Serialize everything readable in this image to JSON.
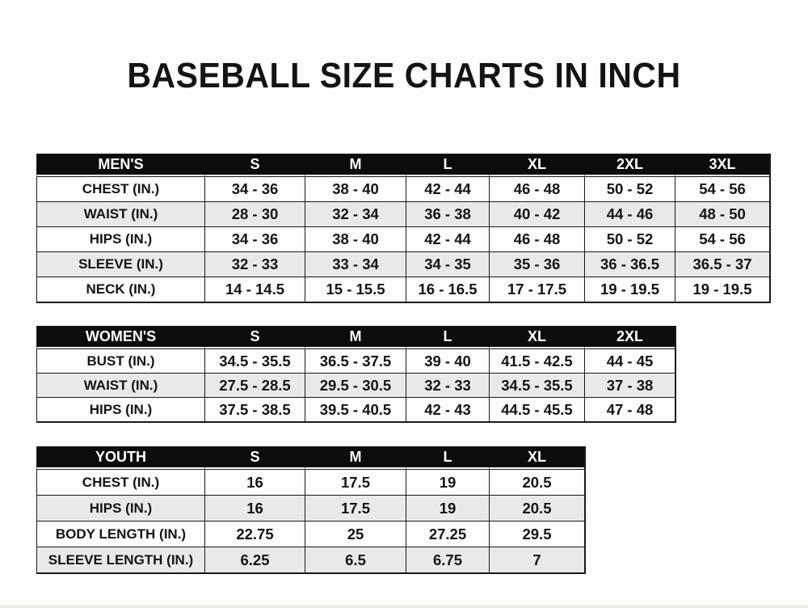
{
  "page": {
    "title": "BASEBALL SIZE CHARTS IN INCH"
  },
  "colors": {
    "background": "#fdfdfd",
    "text": "#141414",
    "border": "#1a1a1a",
    "header_bg": "#0c0c0c",
    "header_text": "#ffffff",
    "row_alt_bg": "#e9e9e9"
  },
  "chart_data": [
    {
      "type": "table",
      "name": "mens-size-table",
      "columns": [
        "MEN'S",
        "S",
        "M",
        "L",
        "XL",
        "2XL",
        "3XL"
      ],
      "rows": [
        [
          "CHEST (IN.)",
          "34 - 36",
          "38 - 40",
          "42 - 44",
          "46 - 48",
          "50 - 52",
          "54 - 56"
        ],
        [
          "WAIST (IN.)",
          "28 - 30",
          "32 - 34",
          "36 - 38",
          "40 - 42",
          "44 - 46",
          "48 - 50"
        ],
        [
          "HIPS (IN.)",
          "34 - 36",
          "38 - 40",
          "42 - 44",
          "46 - 48",
          "50 - 52",
          "54 - 56"
        ],
        [
          "SLEEVE (IN.)",
          "32 - 33",
          "33 - 34",
          "34 - 35",
          "35 - 36",
          "36 - 36.5",
          "36.5 - 37"
        ],
        [
          "NECK (IN.)",
          "14 - 14.5",
          "15 - 15.5",
          "16 - 16.5",
          "17 - 17.5",
          "19 - 19.5",
          "19 - 19.5"
        ]
      ]
    },
    {
      "type": "table",
      "name": "womens-size-table",
      "columns": [
        "WOMEN'S",
        "S",
        "M",
        "L",
        "XL",
        "2XL"
      ],
      "rows": [
        [
          "BUST (IN.)",
          "34.5 - 35.5",
          "36.5 - 37.5",
          "39 - 40",
          "41.5 - 42.5",
          "44 - 45"
        ],
        [
          "WAIST (IN.)",
          "27.5 - 28.5",
          "29.5 - 30.5",
          "32 - 33",
          "34.5 - 35.5",
          "37 - 38"
        ],
        [
          "HIPS (IN.)",
          "37.5 - 38.5",
          "39.5 - 40.5",
          "42 - 43",
          "44.5 - 45.5",
          "47 - 48"
        ]
      ]
    },
    {
      "type": "table",
      "name": "youth-size-table",
      "columns": [
        "YOUTH",
        "S",
        "M",
        "L",
        "XL"
      ],
      "rows": [
        [
          "CHEST (IN.)",
          "16",
          "17.5",
          "19",
          "20.5"
        ],
        [
          "HIPS (IN.)",
          "16",
          "17.5",
          "19",
          "20.5"
        ],
        [
          "BODY LENGTH (IN.)",
          "22.75",
          "25",
          "27.25",
          "29.5"
        ],
        [
          "SLEEVE LENGTH (IN.)",
          "6.25",
          "6.5",
          "6.75",
          "7"
        ]
      ]
    }
  ]
}
